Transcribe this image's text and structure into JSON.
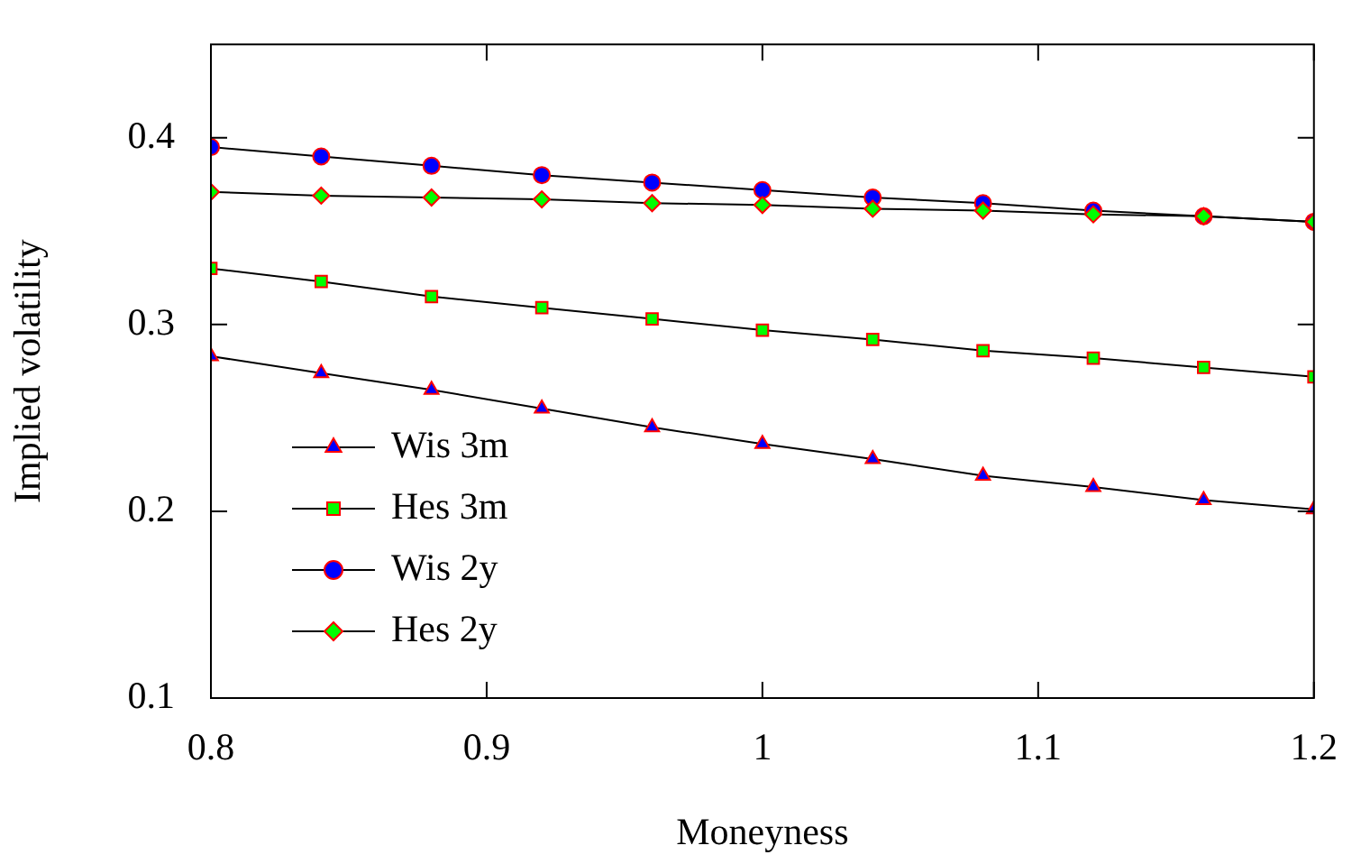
{
  "chart_data": {
    "type": "line",
    "xlabel": "Moneyness",
    "ylabel": "Implied volatility",
    "x": [
      0.8,
      0.84,
      0.88,
      0.92,
      0.96,
      1.0,
      1.04,
      1.08,
      1.12,
      1.16,
      1.2
    ],
    "xlim": [
      0.8,
      1.2
    ],
    "xticks": [
      0.8,
      0.9,
      1,
      1.1,
      1.2
    ],
    "ylim": [
      0.1,
      0.45
    ],
    "yticks": [
      0.1,
      0.2,
      0.3,
      0.4
    ],
    "grid": false,
    "legend": "bottom left",
    "line_style": "solid",
    "series": [
      {
        "name": "Wis 3m",
        "color": "#0000ff",
        "marker": "triangle",
        "values": [
          0.283,
          0.274,
          0.265,
          0.255,
          0.245,
          0.236,
          0.228,
          0.219,
          0.213,
          0.206,
          0.201
        ]
      },
      {
        "name": "Hes 3m",
        "color": "#00ff00",
        "marker": "square",
        "values": [
          0.33,
          0.323,
          0.315,
          0.309,
          0.303,
          0.297,
          0.292,
          0.286,
          0.282,
          0.277,
          0.272
        ]
      },
      {
        "name": "Wis 2y",
        "color": "#0000ff",
        "marker": "circle",
        "values": [
          0.395,
          0.39,
          0.385,
          0.38,
          0.376,
          0.372,
          0.368,
          0.365,
          0.361,
          0.358,
          0.355
        ]
      },
      {
        "name": "Hes 2y",
        "color": "#00ff00",
        "marker": "diamond",
        "values": [
          0.371,
          0.369,
          0.368,
          0.367,
          0.365,
          0.364,
          0.362,
          0.361,
          0.359,
          0.358,
          0.355
        ]
      }
    ]
  }
}
